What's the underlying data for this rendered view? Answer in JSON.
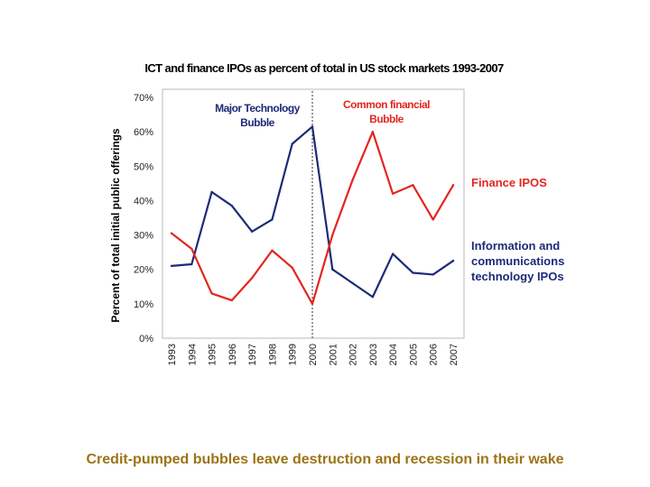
{
  "chart_data": {
    "type": "line",
    "title": "ICT and finance IPOs as percent of total in US stock markets 1993-2007",
    "xlabel": "",
    "ylabel": "Percent of total initial public offerings",
    "ylim": [
      0,
      70
    ],
    "yticks": [
      "0%",
      "10%",
      "20%",
      "30%",
      "40%",
      "50%",
      "60%",
      "70%"
    ],
    "categories": [
      "1993",
      "1994",
      "1995",
      "1996",
      "1997",
      "1998",
      "1999",
      "2000",
      "2001",
      "2002",
      "2003",
      "2004",
      "2005",
      "2006",
      "2007"
    ],
    "series": [
      {
        "name": "Information and communications technology IPOs",
        "legend_lines": [
          "Information and",
          "communications",
          "technology IPOs"
        ],
        "color": "#1c2a78",
        "values": [
          21,
          21.5,
          42.5,
          38.5,
          31,
          34.5,
          56.5,
          61.5,
          20,
          16,
          12,
          24.5,
          19,
          18.5,
          22.5
        ]
      },
      {
        "name": "Finance IPOS",
        "legend_lines": [
          "Finance IPOS"
        ],
        "color": "#e3261f",
        "values": [
          30.5,
          26,
          13,
          11,
          17.5,
          25.5,
          20.5,
          10,
          30,
          46,
          60,
          42,
          44.5,
          34.5,
          44.5
        ]
      }
    ],
    "annotations": [
      {
        "lines": [
          "Major Technology",
          "Bubble"
        ],
        "color": "#1c2a78"
      },
      {
        "lines": [
          "Common financial",
          "Bubble"
        ],
        "color": "#e3261f"
      }
    ],
    "divider": {
      "after_category": "2000",
      "style": "dashed"
    },
    "grid": false,
    "legend": "right"
  },
  "caption": "Credit-pumped bubbles leave destruction and recession in their wake",
  "colors": {
    "caption": "#9c7416",
    "axis": "#8c8c8c"
  }
}
